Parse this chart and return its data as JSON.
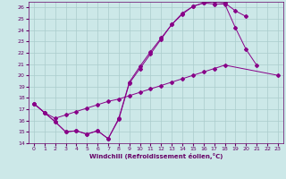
{
  "xlabel": "Windchill (Refroidissement éolien,°C)",
  "bg_color": "#cce8e8",
  "line_color": "#880088",
  "grid_color": "#aacccc",
  "xlim": [
    -0.5,
    23.5
  ],
  "ylim": [
    14,
    26.5
  ],
  "yticks": [
    14,
    15,
    16,
    17,
    18,
    19,
    20,
    21,
    22,
    23,
    24,
    25,
    26
  ],
  "xticks": [
    0,
    1,
    2,
    3,
    4,
    5,
    6,
    7,
    8,
    9,
    10,
    11,
    12,
    13,
    14,
    15,
    16,
    17,
    18,
    19,
    20,
    21,
    22,
    23
  ],
  "line1_x": [
    0,
    1,
    2,
    3,
    4,
    5,
    6,
    7,
    8,
    9,
    10,
    11,
    12,
    13,
    14,
    15,
    16,
    17,
    18,
    19,
    20,
    21
  ],
  "line1_y": [
    17.5,
    16.7,
    15.9,
    15.0,
    15.1,
    14.8,
    15.1,
    14.4,
    16.1,
    19.3,
    20.6,
    21.9,
    23.2,
    24.5,
    25.4,
    26.1,
    26.4,
    26.3,
    26.3,
    24.2,
    22.3,
    20.9
  ],
  "line2_x": [
    0,
    1,
    2,
    3,
    4,
    5,
    6,
    7,
    8,
    9,
    10,
    11,
    12,
    13,
    14,
    15,
    16,
    17,
    18,
    19,
    20
  ],
  "line2_y": [
    17.5,
    16.7,
    15.9,
    15.0,
    15.1,
    14.8,
    15.1,
    14.4,
    16.2,
    19.4,
    20.8,
    22.1,
    23.3,
    24.5,
    25.5,
    26.1,
    26.4,
    26.5,
    26.4,
    25.7,
    25.2
  ],
  "line3_x": [
    0,
    1,
    2,
    3,
    4,
    5,
    6,
    7,
    8,
    9,
    10,
    11,
    12,
    13,
    14,
    15,
    16,
    17,
    18,
    19,
    20,
    21,
    22,
    23
  ],
  "line3_y": [
    17.5,
    16.7,
    16.2,
    16.5,
    16.8,
    17.1,
    17.4,
    17.7,
    17.9,
    18.2,
    18.5,
    18.8,
    19.1,
    19.4,
    19.7,
    20.0,
    20.3,
    20.6,
    20.9,
    null,
    null,
    null,
    null,
    20.0
  ]
}
